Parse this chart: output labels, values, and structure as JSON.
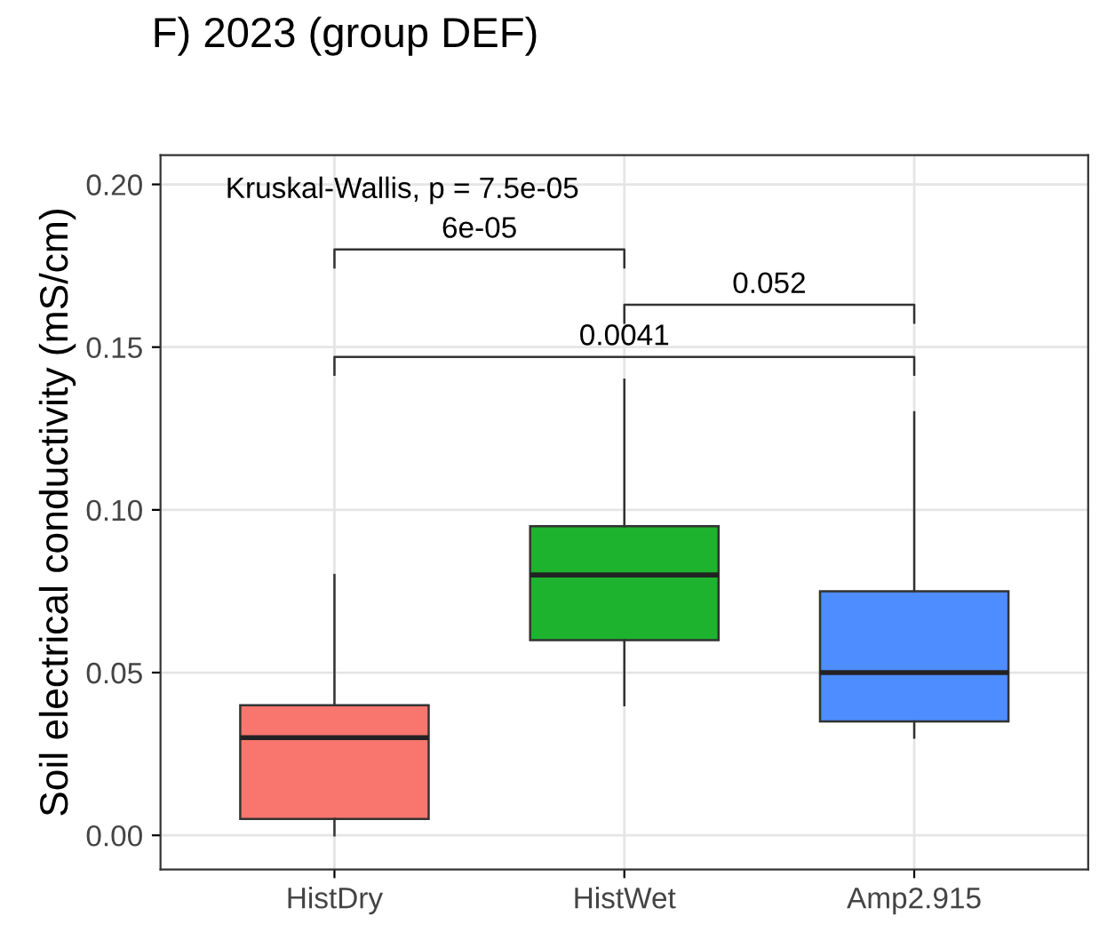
{
  "chart_data": {
    "type": "box",
    "title": "F) 2023 (group DEF)",
    "ylabel": "Soil electrical conductivity (mS/cm)",
    "categories": [
      "HistDry",
      "HistWet",
      "Amp2.915"
    ],
    "colors": [
      "#f8766d",
      "#1db32e",
      "#4d8dff"
    ],
    "boxes": [
      {
        "low": 0.0,
        "q1": 0.005,
        "median": 0.03,
        "q3": 0.04,
        "high": 0.08
      },
      {
        "low": 0.04,
        "q1": 0.06,
        "median": 0.08,
        "q3": 0.095,
        "high": 0.14
      },
      {
        "low": 0.03,
        "q1": 0.035,
        "median": 0.05,
        "q3": 0.075,
        "high": 0.13
      }
    ],
    "ylim": [
      -0.0105,
      0.209
    ],
    "yticks": [
      {
        "value": 0,
        "label": "0.00"
      },
      {
        "value": 0.05,
        "label": "0.05"
      },
      {
        "value": 0.1,
        "label": "0.10"
      },
      {
        "value": 0.15,
        "label": "0.15"
      },
      {
        "value": 0.2,
        "label": "0.20"
      }
    ],
    "grid": true,
    "annotations": [
      "Kruskal-Wallis, p = 7.5e-05",
      "6e-05",
      "0.052",
      "0.0041"
    ]
  }
}
